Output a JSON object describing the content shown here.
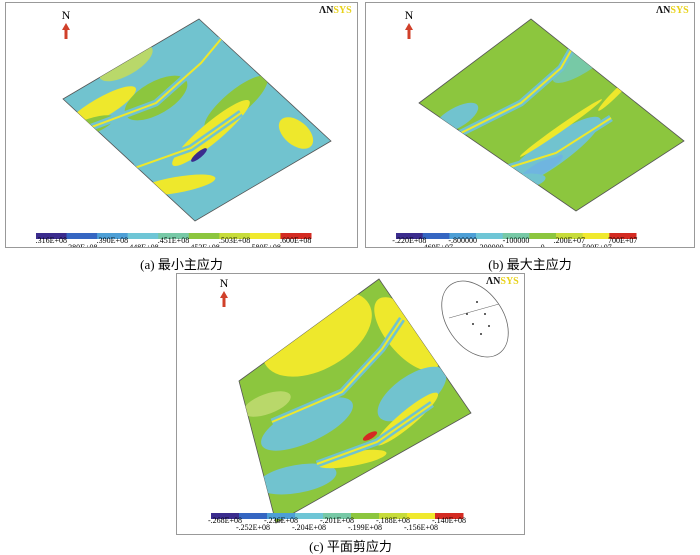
{
  "panels": [
    {
      "caption": "(a) 最小主应力",
      "north": "N",
      "logo": [
        "ΛN",
        "SYS"
      ],
      "legend": [
        ".316E+08",
        ".380E+08",
        ".390E+08",
        ".448E+08",
        ".451E+08",
        ".453E+08",
        ".503E+08",
        ".580E+08",
        ".600E+08"
      ]
    },
    {
      "caption": "(b) 最大主应力",
      "north": "N",
      "logo": [
        "ΛN",
        "SYS"
      ],
      "legend": [
        "-.220E+08",
        "-.469E+07",
        "-.800000",
        "-.300000",
        "-100000",
        "0",
        ".200E+07",
        ".500E+07",
        "700E+07"
      ]
    },
    {
      "caption": "(c) 平面剪应力",
      "north": "N",
      "logo": [
        "ΛN",
        "SYS"
      ],
      "legend": [
        "-.268E+08",
        "-.252E+08",
        "-.236E+08",
        "-.204E+08",
        "-.201E+08",
        "-.199E+08",
        "-.188E+08",
        "-.156E+08",
        "-.140E+08"
      ]
    }
  ]
}
